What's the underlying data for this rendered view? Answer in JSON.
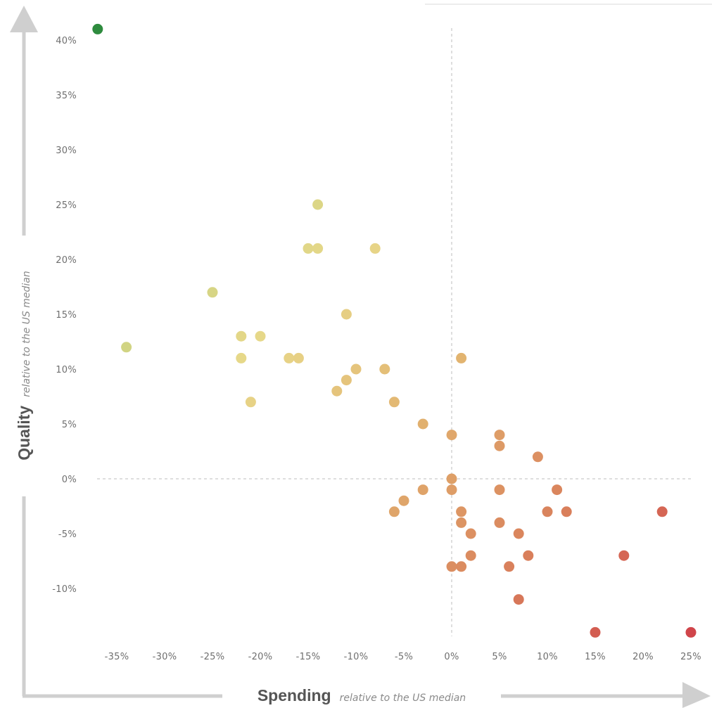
{
  "chart_data": {
    "type": "scatter",
    "title": "",
    "xlabel": "Spending",
    "xlabel_sub": "relative to the US median",
    "ylabel": "Quality",
    "ylabel_sub": "relative to the US median",
    "xlim": [
      -37,
      25
    ],
    "ylim": [
      -14,
      41
    ],
    "x_ticks": [
      -35,
      -30,
      -25,
      -20,
      -15,
      -10,
      -5,
      0,
      5,
      10,
      15,
      20,
      25
    ],
    "x_tick_labels": [
      "-35%",
      "-30%",
      "-25%",
      "-20%",
      "-15%",
      "-10%",
      "-5%",
      "0%",
      "5%",
      "10%",
      "15%",
      "20%",
      "25%"
    ],
    "y_ticks": [
      40,
      35,
      30,
      25,
      20,
      15,
      10,
      5,
      0,
      -5,
      -10
    ],
    "y_tick_labels": [
      "40%",
      "35%",
      "30%",
      "25%",
      "20%",
      "15%",
      "10%",
      "5%",
      "0%",
      "-5%",
      "-10%"
    ],
    "reference_lines": {
      "x": 0,
      "y": 0
    },
    "grid": false,
    "color_scale": [
      "#2e8b3e",
      "#8fbe6a",
      "#c8d280",
      "#e8d88a",
      "#e2b470",
      "#d9825c",
      "#d0454a"
    ],
    "points": [
      [
        -37,
        41
      ],
      [
        -34,
        12
      ],
      [
        -25,
        17
      ],
      [
        -22,
        13
      ],
      [
        -22,
        11
      ],
      [
        -21,
        7
      ],
      [
        -20,
        13
      ],
      [
        -17,
        11
      ],
      [
        -16,
        11
      ],
      [
        -15,
        21
      ],
      [
        -14,
        21
      ],
      [
        -14,
        25
      ],
      [
        -12,
        8
      ],
      [
        -11,
        9
      ],
      [
        -11,
        15
      ],
      [
        -10,
        10
      ],
      [
        -8,
        21
      ],
      [
        -7,
        10
      ],
      [
        -6,
        7
      ],
      [
        -6,
        -3
      ],
      [
        -5,
        -2
      ],
      [
        -3,
        5
      ],
      [
        -3,
        -1
      ],
      [
        0,
        4
      ],
      [
        0,
        0
      ],
      [
        0,
        -1
      ],
      [
        0,
        -8
      ],
      [
        1,
        11
      ],
      [
        1,
        -3
      ],
      [
        1,
        -4
      ],
      [
        1,
        -8
      ],
      [
        2,
        -5
      ],
      [
        2,
        -7
      ],
      [
        5,
        4
      ],
      [
        5,
        3
      ],
      [
        5,
        -1
      ],
      [
        5,
        -4
      ],
      [
        6,
        -8
      ],
      [
        7,
        -5
      ],
      [
        7,
        -11
      ],
      [
        8,
        -7
      ],
      [
        9,
        2
      ],
      [
        10,
        -3
      ],
      [
        11,
        -1
      ],
      [
        12,
        -3
      ],
      [
        15,
        -14
      ],
      [
        18,
        -7
      ],
      [
        22,
        -3
      ],
      [
        25,
        -14
      ]
    ]
  }
}
